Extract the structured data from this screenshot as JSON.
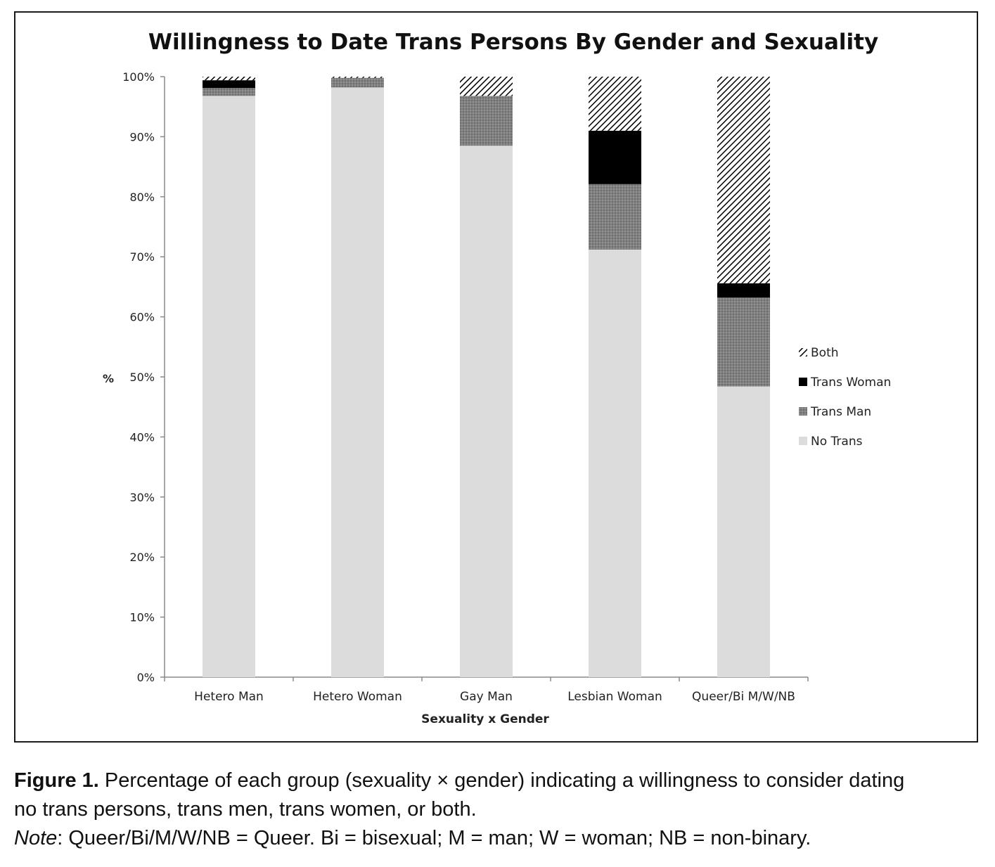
{
  "chart_data": {
    "type": "bar",
    "stacked": true,
    "title": "Willingness to Date Trans Persons By Gender and Sexuality",
    "xlabel": "Sexuality x Gender",
    "ylabel": "%",
    "ylim": [
      0,
      100
    ],
    "yticks": [
      "0%",
      "10%",
      "20%",
      "30%",
      "40%",
      "50%",
      "60%",
      "70%",
      "80%",
      "90%",
      "100%"
    ],
    "categories": [
      "Hetero Man",
      "Hetero Woman",
      "Gay Man",
      "Lesbian Woman",
      "Queer/Bi M/W/NB"
    ],
    "series": [
      {
        "name": "No Trans",
        "color": "#dcdcdc",
        "pattern": "solid",
        "values": [
          96.8,
          98.2,
          88.5,
          71.2,
          48.4
        ]
      },
      {
        "name": "Trans Man",
        "color": "#7a7a7a",
        "pattern": "dotted",
        "values": [
          1.3,
          1.6,
          8.3,
          10.9,
          14.8
        ]
      },
      {
        "name": "Trans Woman",
        "color": "#000000",
        "pattern": "solid",
        "values": [
          1.3,
          0.0,
          0.0,
          8.9,
          2.4
        ]
      },
      {
        "name": "Both",
        "color": "#000000",
        "pattern": "diagonal-hatch",
        "values": [
          0.6,
          0.2,
          3.2,
          9.0,
          34.4
        ]
      }
    ],
    "legend": {
      "position": "right",
      "order": [
        "Both",
        "Trans Woman",
        "Trans Man",
        "No Trans"
      ]
    },
    "grid": false
  },
  "caption": {
    "figure_label": "Figure 1.",
    "text_line1": " Percentage of each group (sexuality × gender) indicating a willingness to consider dating",
    "text_line2": "no trans persons, trans men, trans women, or both.",
    "note_label": "Note",
    "note_text": ": Queer/Bi/M/W/NB = Queer. Bi = bisexual; M = man; W = woman; NB = non-binary."
  }
}
